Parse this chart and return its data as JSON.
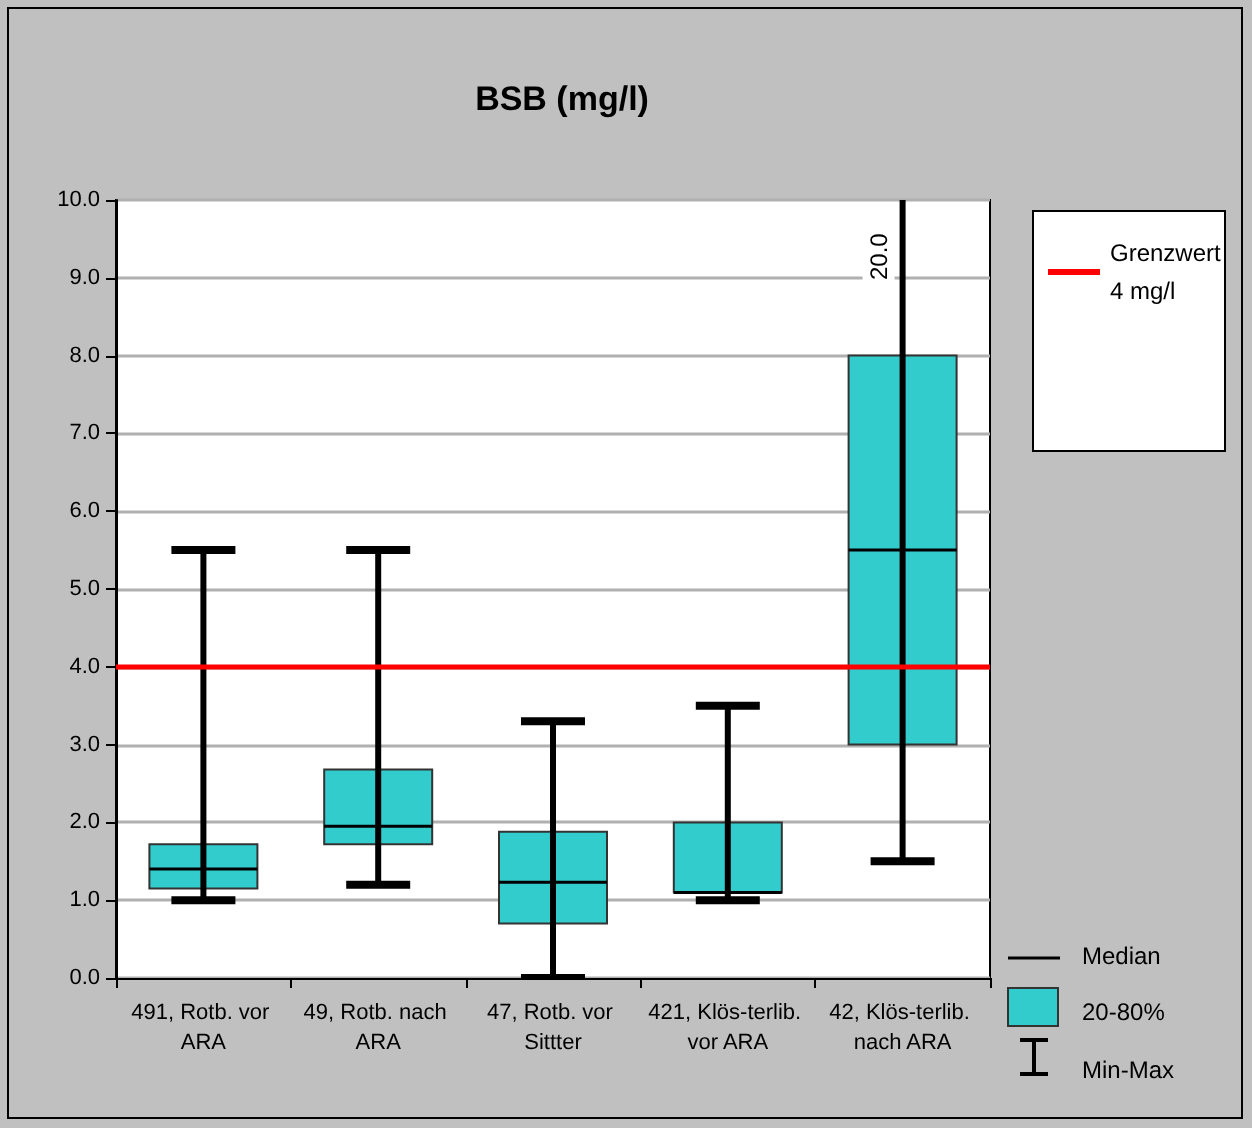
{
  "chart_data": {
    "type": "box",
    "title": "BSB (mg/l)",
    "categories": [
      "491, Rotb. vor ARA",
      "49, Rotb. nach ARA",
      "47, Rotb. vor Sittter",
      "421, Klös-terlib. vor ARA",
      "42, Klös-terlib. nach ARA"
    ],
    "series": [
      {
        "name": "20-80%",
        "color": "#33cccc",
        "boxes": [
          {
            "low": 1.0,
            "q1": 1.15,
            "median": 1.4,
            "q3": 1.72,
            "high": 5.5
          },
          {
            "low": 1.2,
            "q1": 1.72,
            "median": 1.95,
            "q3": 2.68,
            "high": 5.5
          },
          {
            "low": 0.0,
            "q1": 0.7,
            "median": 1.23,
            "q3": 1.88,
            "high": 3.3
          },
          {
            "low": 1.0,
            "q1": 1.1,
            "median": 1.1,
            "q3": 2.0,
            "high": 3.5
          },
          {
            "low": 1.5,
            "q1": 3.0,
            "median": 5.5,
            "q3": 8.0,
            "high": 20.0
          }
        ]
      }
    ],
    "ylim": [
      0,
      10
    ],
    "yticks": [
      {
        "value": 0,
        "label": "0.0"
      },
      {
        "value": 1,
        "label": "1.0"
      },
      {
        "value": 2,
        "label": "2.0"
      },
      {
        "value": 3,
        "label": "3.0"
      },
      {
        "value": 4,
        "label": "4.0"
      },
      {
        "value": 5,
        "label": "5.0"
      },
      {
        "value": 6,
        "label": "6.0"
      },
      {
        "value": 7,
        "label": "7.0"
      },
      {
        "value": 8,
        "label": "8.0"
      },
      {
        "value": 9,
        "label": "9.0"
      },
      {
        "value": 10,
        "label": "10.0"
      }
    ],
    "ref_lines": [
      {
        "axis": "y",
        "value": 4,
        "label": "Grenzwert\n4 mg/l",
        "color": "#ff0000",
        "line_style": "solid"
      }
    ],
    "annotations": [
      "20.0",
      "Median",
      "Min-Max"
    ],
    "grid": "y",
    "legend": "right"
  }
}
